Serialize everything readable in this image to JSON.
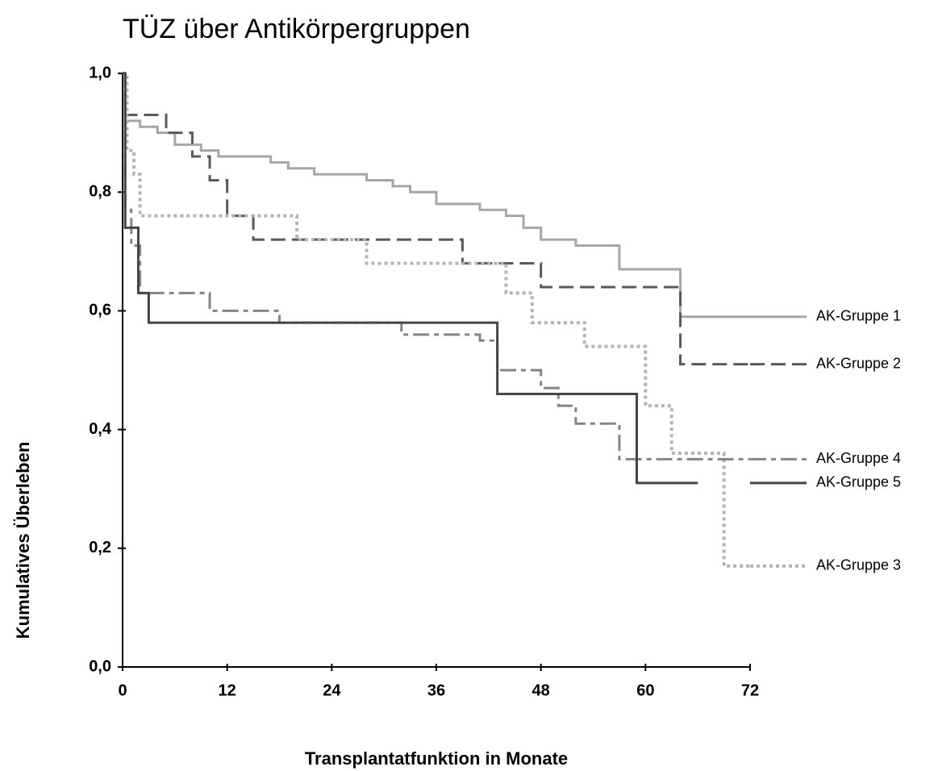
{
  "chart_data": {
    "type": "step-line",
    "title": "TÜZ über Antikörpergruppen",
    "x_label": "Transplantatfunktion in Monate",
    "y_label": "Kumulatives Überleben",
    "xlim": [
      0,
      72
    ],
    "xticks": [
      0,
      12,
      24,
      36,
      48,
      60,
      72
    ],
    "ylim": [
      0,
      1
    ],
    "yticks": [
      {
        "value": 0,
        "label": "0,0"
      },
      {
        "value": 0.2,
        "label": "0,2"
      },
      {
        "value": 0.4,
        "label": "0,4"
      },
      {
        "value": 0.6,
        "label": "0,6"
      },
      {
        "value": 0.8,
        "label": "0,8"
      },
      {
        "value": 1,
        "label": "1,0"
      }
    ],
    "series": [
      {
        "name": "AK-Gruppe 1",
        "color": "#a6a6a6",
        "dash": "none",
        "x": [
          0,
          0.3,
          2,
          4,
          6,
          9,
          11,
          17,
          19,
          22,
          28,
          31,
          33,
          36,
          41,
          44,
          46,
          48,
          52,
          57,
          64,
          72
        ],
        "values": [
          1,
          0.92,
          0.91,
          0.9,
          0.88,
          0.87,
          0.86,
          0.85,
          0.84,
          0.83,
          0.82,
          0.81,
          0.8,
          0.78,
          0.77,
          0.76,
          0.74,
          0.72,
          0.71,
          0.67,
          0.59,
          0.59
        ]
      },
      {
        "name": "AK-Gruppe 2",
        "color": "#595959",
        "dash": "18,8",
        "x": [
          0,
          0.3,
          5,
          8,
          10,
          12,
          15,
          39,
          48,
          64,
          72
        ],
        "values": [
          1,
          0.93,
          0.9,
          0.86,
          0.82,
          0.76,
          0.72,
          0.68,
          0.64,
          0.51,
          0.51
        ]
      },
      {
        "name": "AK-Gruppe 3",
        "color": "#b3b3b3",
        "dash": "4,4",
        "x": [
          0,
          0.5,
          1.3,
          2,
          20,
          28,
          44,
          47,
          53,
          60,
          63,
          69,
          72
        ],
        "values": [
          1,
          0.87,
          0.83,
          0.76,
          0.72,
          0.68,
          0.63,
          0.58,
          0.54,
          0.44,
          0.36,
          0.17,
          0.17
        ]
      },
      {
        "name": "AK-Gruppe 4",
        "color": "#858585",
        "dash": "20,6,6,6",
        "x": [
          0,
          0.3,
          1,
          2,
          10,
          18,
          32,
          41,
          43,
          48,
          50,
          52,
          57,
          72
        ],
        "values": [
          1,
          0.77,
          0.71,
          0.63,
          0.6,
          0.58,
          0.56,
          0.55,
          0.5,
          0.47,
          0.44,
          0.41,
          0.35,
          0.35
        ]
      },
      {
        "name": "AK-Gruppe 5",
        "color": "#454545",
        "dash": "none",
        "x": [
          0,
          0.3,
          1.8,
          3,
          43,
          59,
          66
        ],
        "values": [
          1,
          0.74,
          0.63,
          0.58,
          0.46,
          0.31,
          0.31
        ]
      }
    ]
  }
}
